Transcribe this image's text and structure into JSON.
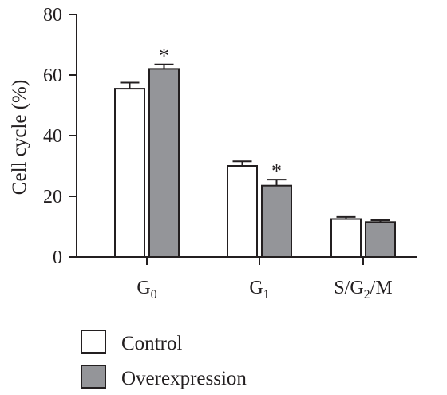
{
  "chart_data": {
    "type": "bar",
    "ylabel": "Cell cycle (%)",
    "ylim": [
      0,
      80
    ],
    "yticks": [
      "0",
      "20",
      "40",
      "60",
      "80"
    ],
    "categories": [
      {
        "base": "G",
        "sub": "0",
        "rest": ""
      },
      {
        "base": "G",
        "sub": "1",
        "rest": ""
      },
      {
        "base": "S/G",
        "sub": "2",
        "rest": "/M"
      }
    ],
    "series": [
      {
        "name": "Control",
        "values": [
          55.5,
          30.0,
          12.5
        ],
        "errors": [
          2.0,
          1.5,
          0.7
        ],
        "significance": [
          "",
          "",
          ""
        ]
      },
      {
        "name": "Overexpression",
        "values": [
          62.0,
          23.5,
          11.5
        ],
        "errors": [
          1.5,
          2.0,
          0.6
        ],
        "significance": [
          "*",
          "*",
          ""
        ]
      }
    ],
    "colors": {
      "Control": "#ffffff",
      "Overexpression": "#949599",
      "stroke": "#231f20"
    },
    "legend_placement": "bottom-left",
    "grid": false
  }
}
